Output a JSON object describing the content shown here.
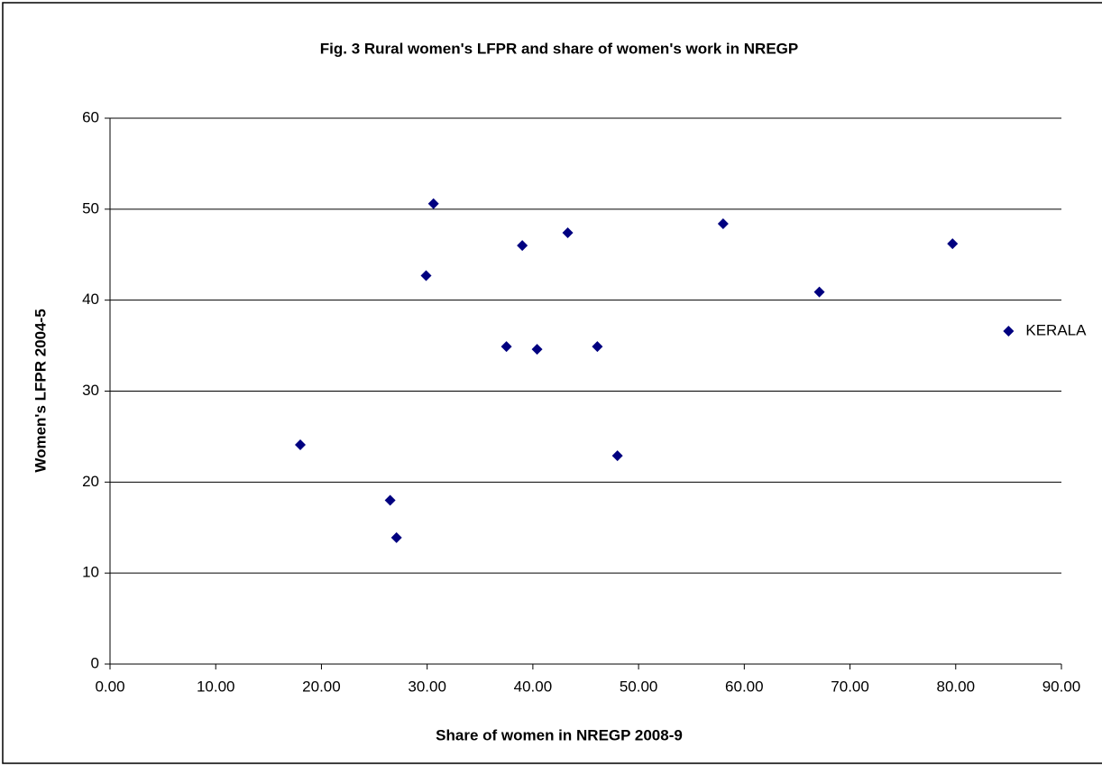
{
  "chart_data": {
    "type": "scatter",
    "title": "Fig. 3 Rural women's LFPR and share of women's work in NREGP",
    "xlabel": "Share of women in NREGP 2008-9",
    "ylabel": "Women's LFPR 2004-5",
    "color": "#000080",
    "grid": true,
    "x": [
      18.0,
      26.5,
      27.1,
      29.9,
      30.6,
      37.5,
      39.0,
      40.4,
      43.3,
      46.1,
      48.0,
      58.0,
      67.1,
      79.7,
      85.0
    ],
    "values": [
      24.1,
      18.0,
      13.9,
      42.7,
      50.6,
      34.9,
      46.0,
      34.6,
      47.4,
      34.9,
      22.9,
      48.4,
      40.9,
      46.2,
      36.6
    ],
    "point_labels": [
      null,
      null,
      null,
      null,
      null,
      null,
      null,
      null,
      null,
      null,
      null,
      null,
      null,
      null,
      "KERALA"
    ],
    "xlim": [
      0,
      90
    ],
    "xticks": [
      {
        "value": 0,
        "label": "0.00"
      },
      {
        "value": 10,
        "label": "10.00"
      },
      {
        "value": 20,
        "label": "20.00"
      },
      {
        "value": 30,
        "label": "30.00"
      },
      {
        "value": 40,
        "label": "40.00"
      },
      {
        "value": 50,
        "label": "50.00"
      },
      {
        "value": 60,
        "label": "60.00"
      },
      {
        "value": 70,
        "label": "70.00"
      },
      {
        "value": 80,
        "label": "80.00"
      },
      {
        "value": 90,
        "label": "90.00"
      }
    ],
    "ylim": [
      0,
      60
    ],
    "yticks": [
      0,
      10,
      20,
      30,
      40,
      50,
      60
    ]
  }
}
